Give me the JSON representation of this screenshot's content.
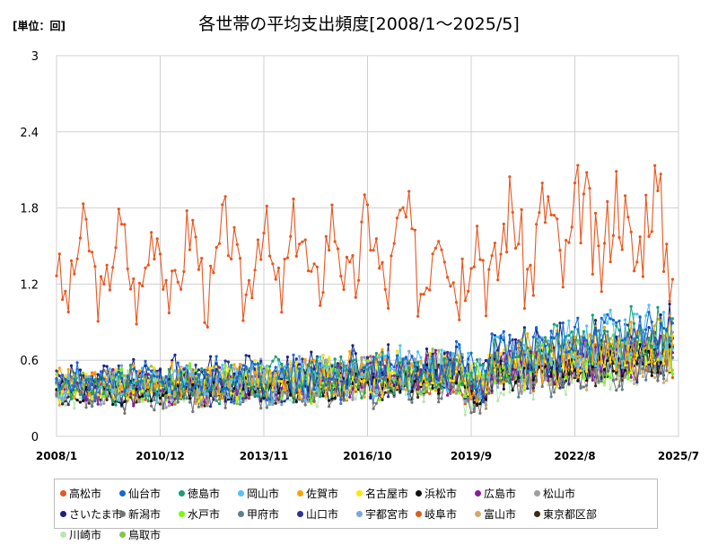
{
  "unit_label": "[単位：回]",
  "chart_data": {
    "type": "line",
    "title": "各世帯の平均支出頻度[2008/1～2025/5]",
    "xlabel": "",
    "ylabel": "",
    "ylim": [
      0,
      3
    ],
    "y_ticks": [
      "0",
      "0.6",
      "1.2",
      "1.8",
      "2.4",
      "3"
    ],
    "x_ticks": [
      "2008/1",
      "2010/12",
      "2013/11",
      "2016/10",
      "2019/9",
      "2022/8",
      "2025/7"
    ],
    "x_range": [
      "2008/1",
      "2025/7"
    ],
    "grid": true,
    "legend_position": "bottom",
    "series": [
      {
        "name": "高松市",
        "color": "#e8561e",
        "base": 1.35,
        "amp": 0.28,
        "noise": 0.22,
        "trend": 0.35,
        "seed": 3
      },
      {
        "name": "仙台市",
        "color": "#1565d8",
        "base": 0.42,
        "amp": 0.06,
        "noise": 0.12,
        "trend": 0.45,
        "seed": 5
      },
      {
        "name": "徳島市",
        "color": "#1a9e74",
        "base": 0.4,
        "amp": 0.05,
        "noise": 0.11,
        "trend": 0.45,
        "seed": 7
      },
      {
        "name": "岡山市",
        "color": "#4fc3f7",
        "base": 0.4,
        "amp": 0.05,
        "noise": 0.12,
        "trend": 0.45,
        "seed": 11
      },
      {
        "name": "佐賀市",
        "color": "#ffa000",
        "base": 0.42,
        "amp": 0.05,
        "noise": 0.1,
        "trend": 0.35,
        "seed": 13
      },
      {
        "name": "名古屋市",
        "color": "#ffe600",
        "base": 0.41,
        "amp": 0.05,
        "noise": 0.1,
        "trend": 0.3,
        "seed": 17
      },
      {
        "name": "浜松市",
        "color": "#111111",
        "base": 0.35,
        "amp": 0.04,
        "noise": 0.07,
        "trend": 0.3,
        "seed": 19
      },
      {
        "name": "広島市",
        "color": "#8e1a9e",
        "base": 0.38,
        "amp": 0.05,
        "noise": 0.1,
        "trend": 0.35,
        "seed": 23
      },
      {
        "name": "松山市",
        "color": "#9e9e9e",
        "base": 0.38,
        "amp": 0.05,
        "noise": 0.1,
        "trend": 0.3,
        "seed": 29
      },
      {
        "name": "さいたま市",
        "color": "#1a237e",
        "base": 0.44,
        "amp": 0.06,
        "noise": 0.12,
        "trend": 0.35,
        "seed": 31
      },
      {
        "name": "新潟市",
        "color": "#757575",
        "base": 0.33,
        "amp": 0.05,
        "noise": 0.1,
        "trend": 0.3,
        "seed": 37
      },
      {
        "name": "水戸市",
        "color": "#76ff03",
        "base": 0.4,
        "amp": 0.05,
        "noise": 0.1,
        "trend": 0.25,
        "seed": 41
      },
      {
        "name": "甲府市",
        "color": "#607d8b",
        "base": 0.37,
        "amp": 0.05,
        "noise": 0.1,
        "trend": 0.25,
        "seed": 43
      },
      {
        "name": "山口市",
        "color": "#283593",
        "base": 0.4,
        "amp": 0.05,
        "noise": 0.11,
        "trend": 0.3,
        "seed": 47
      },
      {
        "name": "宇都宮市",
        "color": "#7ea6e0",
        "base": 0.4,
        "amp": 0.05,
        "noise": 0.11,
        "trend": 0.3,
        "seed": 53
      },
      {
        "name": "岐阜市",
        "color": "#d8601a",
        "base": 0.4,
        "amp": 0.05,
        "noise": 0.1,
        "trend": 0.28,
        "seed": 59
      },
      {
        "name": "富山市",
        "color": "#d9a86c",
        "base": 0.38,
        "amp": 0.05,
        "noise": 0.1,
        "trend": 0.22,
        "seed": 61
      },
      {
        "name": "東京都区部",
        "color": "#3e2a14",
        "base": 0.34,
        "amp": 0.04,
        "noise": 0.07,
        "trend": 0.28,
        "seed": 67
      },
      {
        "name": "川崎市",
        "color": "#b9e6b0",
        "base": 0.36,
        "amp": 0.05,
        "noise": 0.1,
        "trend": 0.25,
        "seed": 71
      },
      {
        "name": "鳥取市",
        "color": "#8bc34a",
        "base": 0.4,
        "amp": 0.05,
        "noise": 0.1,
        "trend": 0.28,
        "seed": 73
      }
    ]
  }
}
